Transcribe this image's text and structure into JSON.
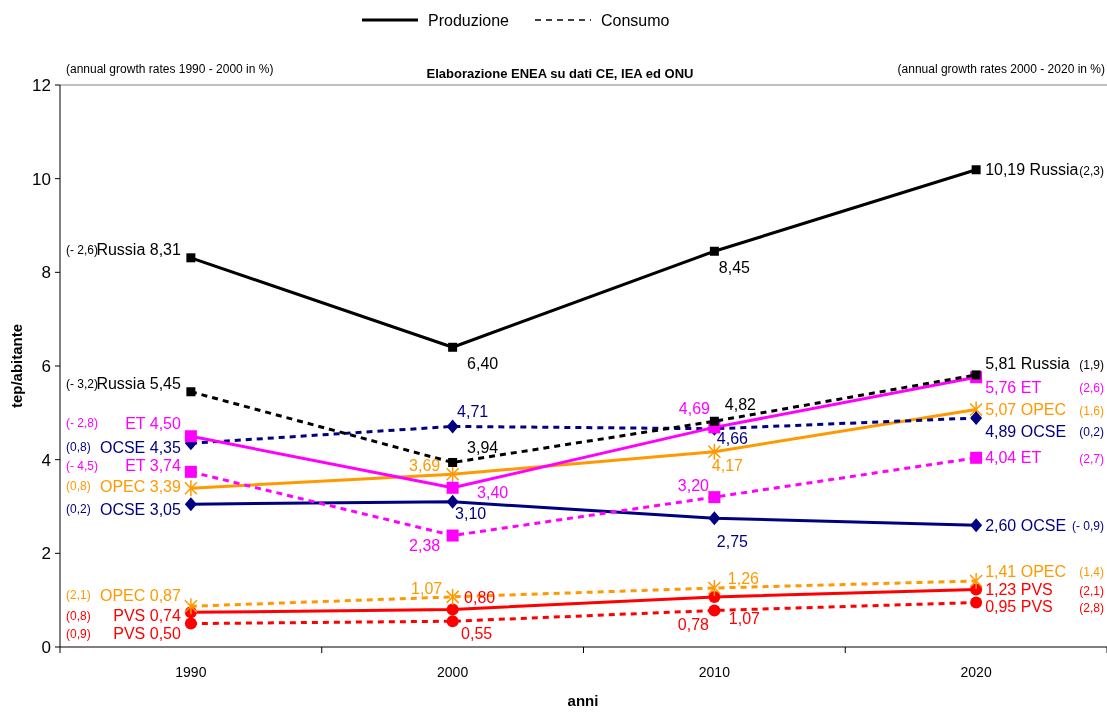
{
  "chart_data": {
    "type": "line",
    "title": "Elaborazione ENEA su dati CE, IEA ed ONU",
    "xlabel": "anni",
    "ylabel": "tep/abitante",
    "categories": [
      "1990",
      "2000",
      "2010",
      "2020"
    ],
    "ylim": [
      0,
      12
    ],
    "yticks": [
      0,
      2,
      4,
      6,
      8,
      10,
      12
    ],
    "grid": false,
    "series": [
      {
        "name": "Russia",
        "color": "#000000",
        "line_style": "solid",
        "marker": "square",
        "values": [
          8.31,
          6.4,
          8.45,
          10.19
        ],
        "value_labels": [
          "8,31",
          "6,40",
          "8,45",
          "10,19"
        ]
      },
      {
        "name": "Russia",
        "color": "#000000",
        "line_style": "dashed",
        "marker": "square",
        "values": [
          5.45,
          3.94,
          4.82,
          5.81
        ],
        "value_labels": [
          "5,45",
          "3,94",
          "4,82",
          "5,81"
        ]
      },
      {
        "name": "ET",
        "color": "#ff00ff",
        "line_style": "solid",
        "marker": "square",
        "values": [
          4.5,
          3.4,
          4.69,
          5.76
        ],
        "value_labels": [
          "4,50",
          "3,40",
          "4,69",
          "5,76"
        ]
      },
      {
        "name": "ET",
        "color": "#ff00ff",
        "line_style": "dashed",
        "marker": "square",
        "values": [
          3.74,
          2.38,
          3.2,
          4.04
        ],
        "value_labels": [
          "3,74",
          "2,38",
          "3,20",
          "4,04"
        ]
      },
      {
        "name": "OCSE",
        "color": "#000080",
        "line_style": "solid",
        "marker": "diamond",
        "values": [
          3.05,
          3.1,
          2.75,
          2.6
        ],
        "value_labels": [
          "3,05",
          "3,10",
          "2,75",
          "2,60"
        ]
      },
      {
        "name": "OCSE",
        "color": "#000080",
        "line_style": "dashed",
        "marker": "diamond",
        "values": [
          4.35,
          4.71,
          4.66,
          4.89
        ],
        "value_labels": [
          "4,35",
          "4,71",
          "4,66",
          "4,89"
        ]
      },
      {
        "name": "OPEC",
        "color": "#ff9900",
        "line_style": "solid",
        "marker": "cross",
        "values": [
          3.39,
          3.69,
          4.17,
          5.07
        ],
        "value_labels": [
          "3,39",
          "3,69",
          "4,17",
          "5,07"
        ]
      },
      {
        "name": "OPEC",
        "color": "#ff9900",
        "line_style": "dashed",
        "marker": "cross",
        "values": [
          0.87,
          1.07,
          1.26,
          1.41
        ],
        "value_labels": [
          "0,87",
          "1,07",
          "1,26",
          "1,41"
        ]
      },
      {
        "name": "PVS",
        "color": "#ff0000",
        "line_style": "solid",
        "marker": "circle",
        "values": [
          0.74,
          0.8,
          1.07,
          1.23
        ],
        "value_labels": [
          "0,74",
          "0,80",
          "1,07",
          "1,23"
        ]
      },
      {
        "name": "PVS",
        "color": "#ff0000",
        "line_style": "dashed",
        "marker": "circle",
        "values": [
          0.5,
          0.55,
          0.78,
          0.95
        ],
        "value_labels": [
          "0,50",
          "0,55",
          "0,78",
          "0,95"
        ]
      }
    ],
    "annotations": [
      "Produzione",
      "Consumo",
      "(annual growth rates 1990 - 2000  in %)",
      "(annual growth rates 2000 - 2020  in %)",
      "(- 2,6)",
      "(- 3,2)",
      "(- 2,8)",
      "(- 4,5)",
      "(0,2)",
      "(0,8)",
      "(0,8)",
      "(2,1)",
      "(0,8)",
      "(0,9)",
      "(2,3)",
      "(1,9)",
      "(2,6)",
      "(2,7)",
      "(- 0,9)",
      "(0,2)",
      "(1,6)",
      "(1,4)",
      "(2,1)",
      "(2,8)"
    ]
  }
}
